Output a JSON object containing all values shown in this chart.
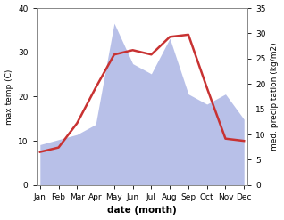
{
  "months": [
    "Jan",
    "Feb",
    "Mar",
    "Apr",
    "May",
    "Jun",
    "Jul",
    "Aug",
    "Sep",
    "Oct",
    "Nov",
    "Dec"
  ],
  "temp": [
    7.5,
    8.5,
    14.0,
    22.0,
    29.5,
    30.5,
    29.5,
    33.5,
    34.0,
    22.0,
    10.5,
    10.0
  ],
  "precip": [
    8,
    9,
    10,
    12,
    32,
    24,
    22,
    29,
    18,
    16,
    18,
    13
  ],
  "temp_color": "#c83232",
  "precip_fill_color": "#b8c0e8",
  "title": "",
  "xlabel": "date (month)",
  "ylabel_left": "max temp (C)",
  "ylabel_right": "med. precipitation (kg/m2)",
  "ylim_left": [
    0,
    40
  ],
  "ylim_right": [
    0,
    35
  ],
  "yticks_left": [
    0,
    10,
    20,
    30,
    40
  ],
  "yticks_right": [
    0,
    5,
    10,
    15,
    20,
    25,
    30,
    35
  ],
  "bg_color": "#ffffff",
  "line_width": 1.8
}
